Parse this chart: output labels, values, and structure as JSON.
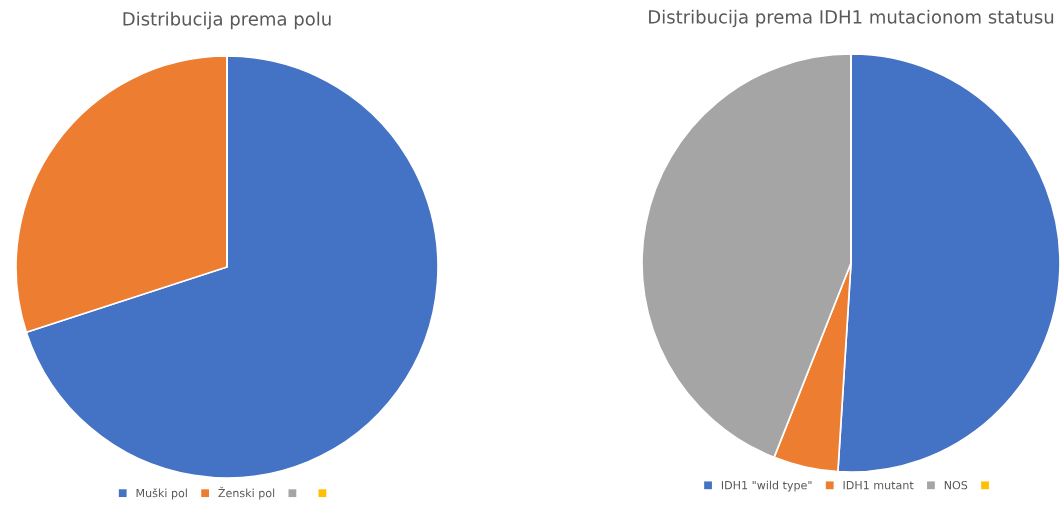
{
  "chart_data": [
    {
      "type": "pie",
      "title": "Distribucija prema polu",
      "categories": [
        "Muški pol",
        "Ženski pol",
        null,
        null
      ],
      "values": [
        70,
        30,
        0,
        0
      ],
      "colors": [
        "#4472c4",
        "#ed7d31",
        "#a5a5a5",
        "#ffc000"
      ],
      "legend": "bottom"
    },
    {
      "type": "pie",
      "title": "Distribucija prema IDH1 mutacionom statusu",
      "categories": [
        "IDH1 \"wild type\"",
        "IDH1 mutant",
        "NOS",
        null
      ],
      "values": [
        51,
        5,
        44,
        0
      ],
      "colors": [
        "#4472c4",
        "#ed7d31",
        "#a5a5a5",
        "#ffc000"
      ],
      "legend": "bottom"
    }
  ]
}
